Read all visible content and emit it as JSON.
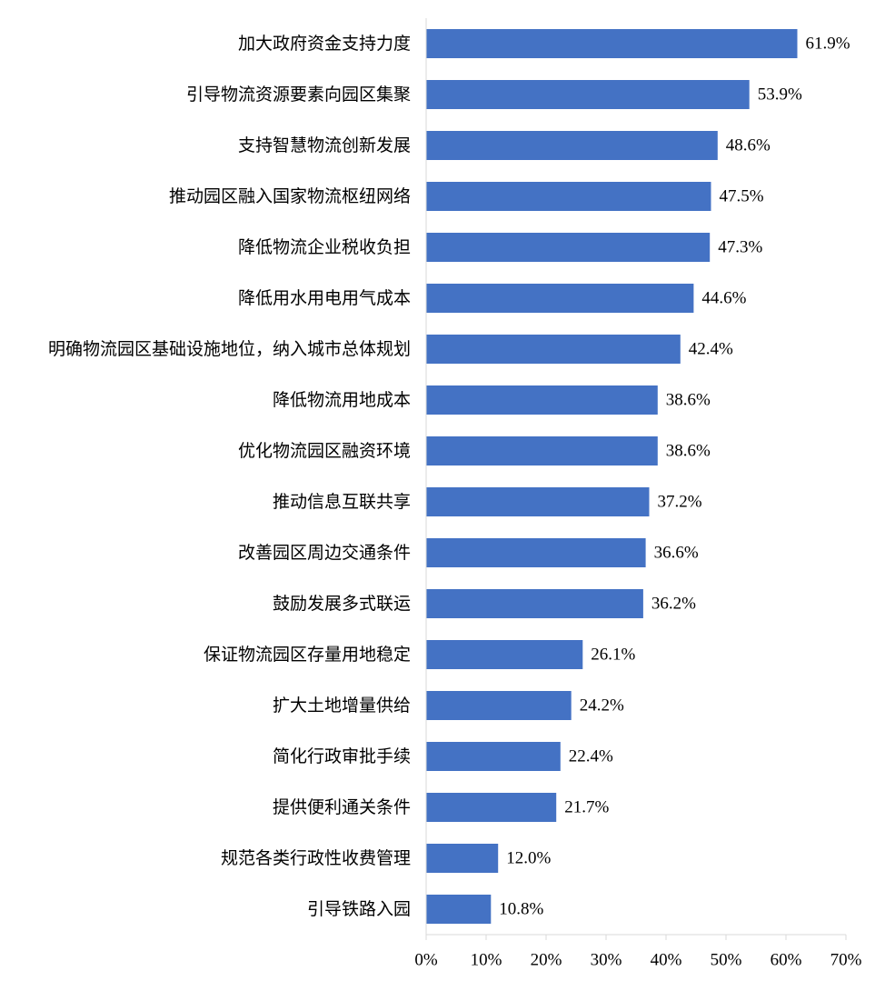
{
  "chart_data": {
    "type": "bar",
    "orientation": "horizontal",
    "title": "",
    "xlabel": "",
    "ylabel": "",
    "categories": [
      "加大政府资金支持力度",
      "引导物流资源要素向园区集聚",
      "支持智慧物流创新发展",
      "推动园区融入国家物流枢纽网络",
      "降低物流企业税收负担",
      "降低用水用电用气成本",
      "明确物流园区基础设施地位，纳入城市总体规划",
      "降低物流用地成本",
      "优化物流园区融资环境",
      "推动信息互联共享",
      "改善园区周边交通条件",
      "鼓励发展多式联运",
      "保证物流园区存量用地稳定",
      "扩大土地增量供给",
      "简化行政审批手续",
      "提供便利通关条件",
      "规范各类行政性收费管理",
      "引导铁路入园"
    ],
    "values": [
      61.9,
      53.9,
      48.6,
      47.5,
      47.3,
      44.6,
      42.4,
      38.6,
      38.6,
      37.2,
      36.6,
      36.2,
      26.1,
      24.2,
      22.4,
      21.7,
      12.0,
      10.8
    ],
    "value_labels": [
      "61.9%",
      "53.9%",
      "48.6%",
      "47.5%",
      "47.3%",
      "44.6%",
      "42.4%",
      "38.6%",
      "38.6%",
      "37.2%",
      "36.6%",
      "36.2%",
      "26.1%",
      "24.2%",
      "22.4%",
      "21.7%",
      "12.0%",
      "10.8%"
    ],
    "xlim": [
      0,
      70
    ],
    "x_ticks": [
      0,
      10,
      20,
      30,
      40,
      50,
      60,
      70
    ],
    "x_tick_labels": [
      "0%",
      "10%",
      "20%",
      "30%",
      "40%",
      "50%",
      "60%",
      "70%"
    ],
    "grid": false,
    "legend": "none",
    "bar_color": "#4472C4",
    "axis_color": "#D9D9D9"
  }
}
